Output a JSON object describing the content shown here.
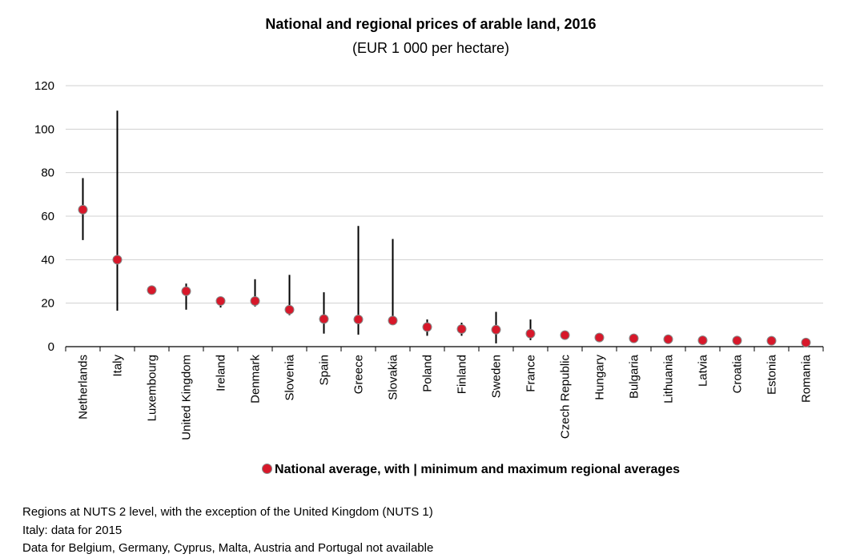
{
  "chart_data": {
    "type": "scatter",
    "title": "National and regional prices of arable land, 2016",
    "subtitle": "(EUR 1 000 per hectare)",
    "xlabel": "",
    "ylabel": "",
    "ylim": [
      0,
      120
    ],
    "yticks": [
      0,
      20,
      40,
      60,
      80,
      100,
      120
    ],
    "grid": true,
    "legend_position": "bottom",
    "legend_label": "National average, with | minimum and maximum regional averages",
    "categories": [
      "Netherlands",
      "Italy",
      "Luxembourg",
      "United Kingdom",
      "Ireland",
      "Denmark",
      "Slovenia",
      "Spain",
      "Greece",
      "Slovakia",
      "Poland",
      "Finland",
      "Sweden",
      "France",
      "Czech Republic",
      "Hungary",
      "Bulgaria",
      "Lithuania",
      "Latvia",
      "Croatia",
      "Estonia",
      "Romania"
    ],
    "series": [
      {
        "values": [
          63.0,
          40.0,
          26.0,
          25.5,
          21.0,
          21.0,
          17.0,
          12.7,
          12.5,
          12.0,
          9.0,
          8.1,
          7.8,
          6.0,
          5.3,
          4.2,
          3.8,
          3.4,
          2.9,
          2.8,
          2.7,
          1.9
        ],
        "min": [
          49.0,
          16.5,
          null,
          17.0,
          18.0,
          18.5,
          14.5,
          6.0,
          5.5,
          12.0,
          5.0,
          5.0,
          1.5,
          3.0,
          null,
          3.0,
          2.5,
          2.5,
          2.0,
          2.0,
          2.0,
          1.5
        ],
        "max": [
          77.5,
          108.5,
          null,
          29.0,
          23.0,
          31.0,
          33.0,
          25.0,
          55.5,
          49.5,
          12.5,
          11.0,
          16.0,
          12.5,
          null,
          5.5,
          5.5,
          4.5,
          4.5,
          4.5,
          4.0,
          3.0
        ]
      }
    ],
    "colors": {
      "marker": "#d7182a",
      "marker_edge": "#888888",
      "range_line": "#000000",
      "grid": "#d0d0d0",
      "axis": "#000000"
    }
  },
  "notes": [
    "Regions at NUTS 2 level, with the exception of the United Kingdom (NUTS 1)",
    "Italy: data for 2015",
    "Data for Belgium, Germany, Cyprus, Malta, Austria and Portugal not available"
  ]
}
